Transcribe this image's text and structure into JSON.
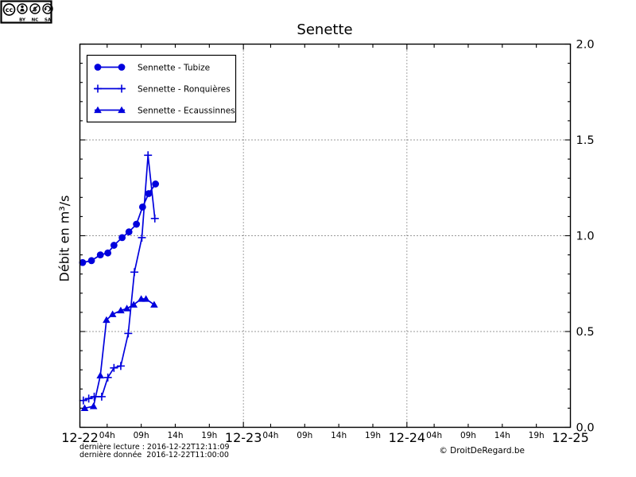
{
  "chart_data": {
    "type": "line",
    "title": "Senette",
    "ylabel": "Débit en m³/s",
    "xlim_hours": [
      0,
      72
    ],
    "ylim": [
      0.0,
      2.0
    ],
    "grid": "dotted",
    "grid_y": [
      0.5,
      1.0,
      1.5
    ],
    "grid_x_hours": [
      24,
      48
    ],
    "x_major_ticks": [
      {
        "t": 0,
        "label": "12-22"
      },
      {
        "t": 24,
        "label": "12-23"
      },
      {
        "t": 48,
        "label": "12-24"
      },
      {
        "t": 72,
        "label": "12-25"
      }
    ],
    "x_minor_ticks": [
      {
        "t": 4,
        "label": "04h"
      },
      {
        "t": 9,
        "label": "09h"
      },
      {
        "t": 14,
        "label": "14h"
      },
      {
        "t": 19,
        "label": "19h"
      },
      {
        "t": 28,
        "label": "04h"
      },
      {
        "t": 33,
        "label": "09h"
      },
      {
        "t": 38,
        "label": "14h"
      },
      {
        "t": 43,
        "label": "19h"
      },
      {
        "t": 52,
        "label": "04h"
      },
      {
        "t": 57,
        "label": "09h"
      },
      {
        "t": 62,
        "label": "14h"
      },
      {
        "t": 67,
        "label": "19h"
      }
    ],
    "y_major_ticks": {
      "values": [
        0.0,
        0.5,
        1.0,
        1.5,
        2.0
      ],
      "labels": [
        "0.0",
        "0.5",
        "1.0",
        "1.5",
        "2.0"
      ]
    },
    "y_minor_step": 0.1,
    "legend_position": "upper left",
    "series": [
      {
        "name": "Sennette - Tubize",
        "marker": "circle",
        "color": "#0000dd",
        "x": [
          0.4,
          1.7,
          3.0,
          4.1,
          5.0,
          6.2,
          7.2,
          8.3,
          9.2,
          10.1,
          11.1
        ],
        "values": [
          0.86,
          0.87,
          0.9,
          0.91,
          0.95,
          0.99,
          1.02,
          1.06,
          1.15,
          1.22,
          1.27
        ]
      },
      {
        "name": "Sennette - Ronquières",
        "marker": "plus",
        "color": "#0000dd",
        "x": [
          0.5,
          1.3,
          2.1,
          3.2,
          4.1,
          5.0,
          6.0,
          7.1,
          8.0,
          9.1,
          10.0,
          11.0
        ],
        "values": [
          0.14,
          0.15,
          0.16,
          0.16,
          0.26,
          0.31,
          0.32,
          0.49,
          0.81,
          0.99,
          1.42,
          1.09
        ]
      },
      {
        "name": "Sennette - Ecaussinnes",
        "marker": "triangle",
        "color": "#0000dd",
        "x": [
          0.7,
          2.0,
          3.0,
          3.9,
          4.8,
          6.0,
          6.9,
          7.9,
          9.0,
          9.7,
          10.9
        ],
        "values": [
          0.1,
          0.11,
          0.27,
          0.56,
          0.59,
          0.61,
          0.62,
          0.64,
          0.67,
          0.67,
          0.64
        ]
      }
    ]
  },
  "colors": {
    "series_blue": "#0000dd",
    "axis": "#000000",
    "background": "#ffffff"
  },
  "footer": {
    "last_reading": "dernière lecture : 2016-12-22T12:11:09",
    "last_data": "dernière donnée  2016-12-22T11:00:00",
    "copyright": "© DroitDeRegard.be",
    "license": {
      "icons": [
        "cc-icon",
        "by-icon",
        "nc-icon",
        "sa-icon"
      ],
      "labels": [
        "BY",
        "NC",
        "SA"
      ],
      "cc_text": "cc",
      "nc_symbol": "$"
    }
  }
}
